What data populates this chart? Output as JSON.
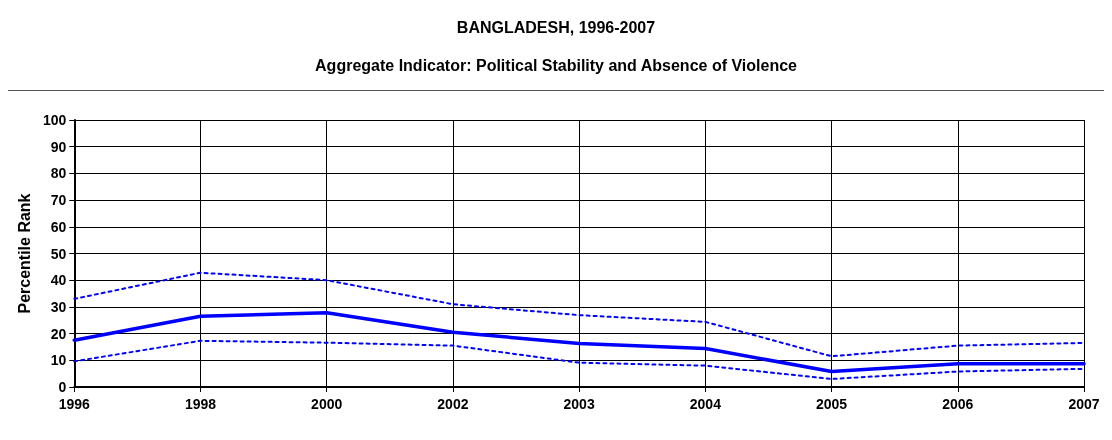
{
  "chart_data": {
    "type": "line",
    "title": "BANGLADESH, 1996-2007",
    "subtitle": "Aggregate Indicator: Political Stability and Absence of Violence",
    "ylabel": "Percentile Rank",
    "categories": [
      "1996",
      "1998",
      "2000",
      "2002",
      "2003",
      "2004",
      "2005",
      "2006",
      "2007"
    ],
    "series": [
      {
        "color": "#0000ff",
        "line_style": "dotted",
        "values": [
          33,
          42.8,
          40,
          31,
          26.9,
          24.4,
          11.5,
          15.5,
          16.5
        ]
      },
      {
        "color": "#0000ff",
        "line_style": "solid",
        "values": [
          17.5,
          26.5,
          27.8,
          20.5,
          16.3,
          14.4,
          5.8,
          8.7,
          8.7
        ]
      },
      {
        "color": "#0000ff",
        "line_style": "dotted",
        "values": [
          9.6,
          17.3,
          16.6,
          15.5,
          9.1,
          8,
          3,
          5.8,
          6.8
        ]
      }
    ],
    "ylim": [
      0,
      100
    ],
    "yticks": [
      0,
      10,
      20,
      30,
      40,
      50,
      60,
      70,
      80,
      90,
      100
    ],
    "grid": true,
    "marker": "none"
  }
}
